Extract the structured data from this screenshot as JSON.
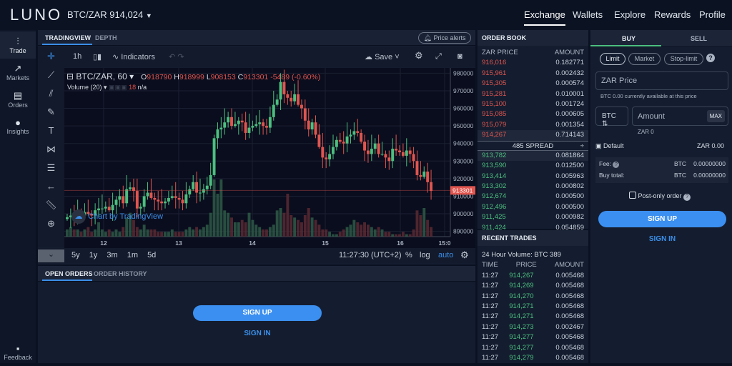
{
  "header": {
    "logo": "LUNO",
    "pair": "BTC/ZAR 914,024",
    "nav": [
      "Exchange",
      "Wallets",
      "Explore",
      "Rewards",
      "Profile"
    ]
  },
  "sidebar": {
    "items": [
      {
        "label": "Trade",
        "icon": "candles-icon"
      },
      {
        "label": "Markets",
        "icon": "trend-icon"
      },
      {
        "label": "Orders",
        "icon": "list-icon"
      },
      {
        "label": "Insights",
        "icon": "bulb-icon"
      }
    ],
    "feedback": "Feedback"
  },
  "chart_panel": {
    "tabs": [
      "TRADINGVIEW",
      "DEPTH"
    ],
    "price_alerts": "Price alerts",
    "interval": "1h",
    "indicators": "Indicators",
    "save": "Save",
    "legend": {
      "symbol": "BTC/ZAR, 60",
      "o_label": "O",
      "o": "918790",
      "h_label": "H",
      "h": "918999",
      "l_label": "L",
      "l": "908153",
      "c_label": "C",
      "c": "913301",
      "change": "-5489 (-0.60%)",
      "volume": "Volume (20)",
      "vol_value": "18",
      "vol_na": "n/a"
    },
    "watermark": "Chart by TradingView",
    "ranges": [
      "5y",
      "1y",
      "3m",
      "1m",
      "5d"
    ],
    "clock": "11:27:30 (UTC+2)",
    "opts": [
      "%",
      "log",
      "auto"
    ]
  },
  "chart_data": {
    "type": "candlestick",
    "ylim": [
      887000,
      983000
    ],
    "yticks": [
      "980000",
      "970000",
      "960000",
      "950000",
      "940000",
      "930000",
      "920000",
      "910000",
      "900000",
      "890000"
    ],
    "xticks": [
      "12",
      "13",
      "14",
      "15",
      "16",
      "15:0"
    ],
    "last_price": "913301",
    "up_color": "#4cbf7f",
    "down_color": "#e0554f",
    "closes": [
      898,
      899,
      898,
      900,
      899,
      901,
      900,
      899,
      902,
      903,
      903,
      904,
      902,
      905,
      908,
      910,
      906,
      914,
      915,
      913,
      903,
      904,
      910,
      912,
      909,
      908,
      907,
      906,
      907,
      909,
      910,
      909,
      908,
      906,
      911,
      914,
      918,
      912,
      912,
      914,
      916,
      922,
      943,
      948,
      949,
      952,
      955,
      950,
      951,
      953,
      952,
      946,
      949,
      950,
      951,
      952,
      950,
      949,
      955,
      962,
      965,
      975,
      968,
      966,
      964,
      968,
      962,
      960,
      953,
      948,
      952,
      945,
      938,
      932,
      931,
      934,
      938,
      942,
      941,
      940,
      944,
      945,
      947,
      946,
      941,
      936,
      934,
      937,
      940,
      934,
      934,
      932,
      930,
      937,
      936,
      935,
      933,
      936,
      934,
      930,
      922,
      921,
      924,
      918,
      913
    ],
    "volumes": [
      3,
      4,
      3,
      3,
      2,
      3,
      4,
      2,
      3,
      6,
      3,
      2,
      3,
      2,
      3,
      2,
      4,
      8,
      10,
      7,
      4,
      3,
      5,
      3,
      3,
      3,
      2,
      2,
      2,
      2,
      3,
      2,
      2,
      2,
      3,
      4,
      3,
      4,
      3,
      4,
      5,
      10,
      24,
      18,
      24,
      11,
      10,
      8,
      6,
      6,
      7,
      6,
      10,
      7,
      5,
      4,
      3,
      3,
      4,
      5,
      11,
      12,
      10,
      18,
      9,
      8,
      7,
      6,
      9,
      12,
      8,
      7,
      5,
      3,
      3,
      2,
      1,
      1,
      2,
      3,
      4,
      5,
      7,
      6,
      5,
      6,
      5,
      4,
      3,
      4,
      3,
      2,
      2,
      1,
      1,
      1,
      2,
      1,
      1,
      3,
      11,
      9,
      12,
      7,
      4
    ]
  },
  "orders": {
    "tabs": [
      "OPEN ORDERS",
      "ORDER HISTORY"
    ],
    "signup": "SIGN UP",
    "signin": "SIGN IN"
  },
  "order_book": {
    "title": "ORDER BOOK",
    "cols": [
      "ZAR PRICE",
      "AMOUNT"
    ],
    "asks": [
      [
        "916,016",
        "0.182771"
      ],
      [
        "915,961",
        "0.002432"
      ],
      [
        "915,305",
        "0.000574"
      ],
      [
        "915,281",
        "0.010001"
      ],
      [
        "915,100",
        "0.001724"
      ],
      [
        "915,085",
        "0.000605"
      ],
      [
        "915,079",
        "0.001354"
      ],
      [
        "914,267",
        "0.714143"
      ]
    ],
    "spread": "485 SPREAD",
    "bids": [
      [
        "913,782",
        "0.081864"
      ],
      [
        "913,590",
        "0.012500"
      ],
      [
        "913,414",
        "0.005963"
      ],
      [
        "913,302",
        "0.000802"
      ],
      [
        "912,674",
        "0.000500"
      ],
      [
        "912,496",
        "0.000500"
      ],
      [
        "911,425",
        "0.000982"
      ],
      [
        "911,424",
        "0.054859"
      ]
    ]
  },
  "recent_trades": {
    "title": "RECENT TRADES",
    "volume": "24 Hour Volume:  BTC 389",
    "cols": [
      "TIME",
      "PRICE",
      "AMOUNT"
    ],
    "rows": [
      [
        "11:27",
        "914,267",
        "0.005468"
      ],
      [
        "11:27",
        "914,269",
        "0.005468"
      ],
      [
        "11:27",
        "914,270",
        "0.005468"
      ],
      [
        "11:27",
        "914,271",
        "0.005468"
      ],
      [
        "11:27",
        "914,271",
        "0.005468"
      ],
      [
        "11:27",
        "914,273",
        "0.002467"
      ],
      [
        "11:27",
        "914,277",
        "0.005468"
      ],
      [
        "11:27",
        "914,277",
        "0.005468"
      ],
      [
        "11:27",
        "914,279",
        "0.005468"
      ]
    ]
  },
  "trade_form": {
    "tabs": [
      "BUY",
      "SELL"
    ],
    "order_types": [
      "Limit",
      "Market",
      "Stop-limit"
    ],
    "price_placeholder": "ZAR  Price",
    "available": "BTC 0.00 currently available at this price",
    "currency": "BTC",
    "amount_placeholder": "Amount",
    "max": "MAX",
    "zar_amount": "ZAR 0",
    "wallet": "Default",
    "wallet_balance": "ZAR 0.00",
    "fee_label": "Fee:",
    "fee_cur": "BTC",
    "fee": "0.00000000",
    "total_label": "Buy total:",
    "total_cur": "BTC",
    "total": "0.00000000",
    "post_only": "Post-only order",
    "signup": "SIGN UP",
    "signin": "SIGN IN"
  }
}
